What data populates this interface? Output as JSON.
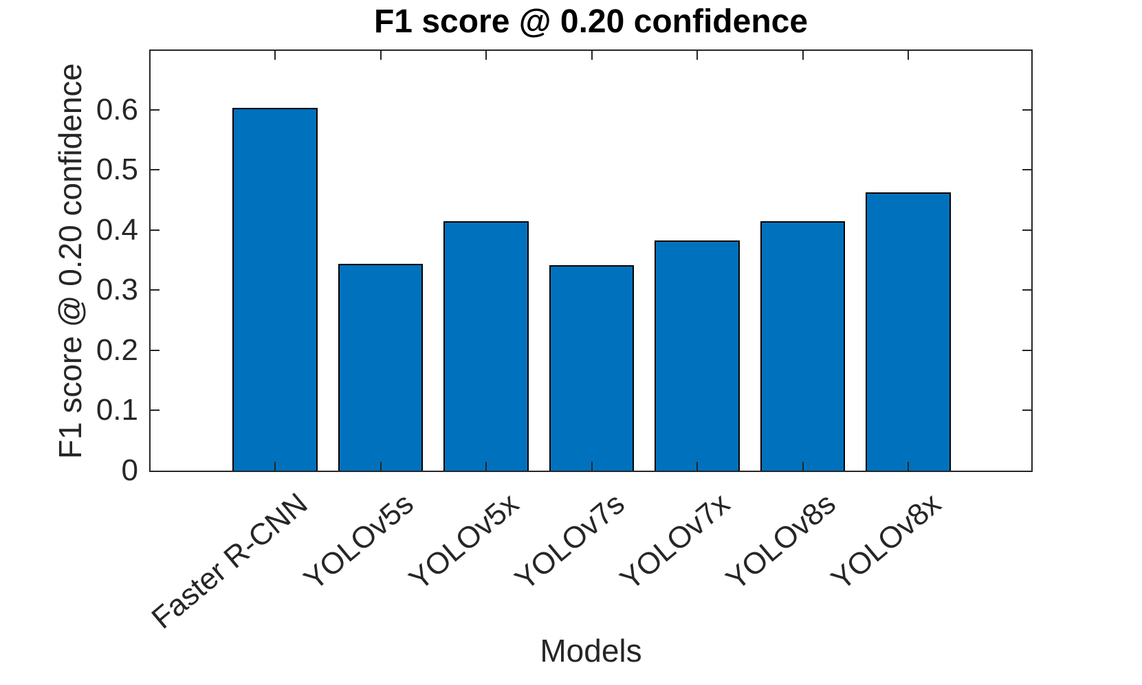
{
  "chart_data": {
    "type": "bar",
    "title": "F1 score @ 0.20 confidence",
    "xlabel": "Models",
    "ylabel": "F1 score @ 0.20 confidence",
    "categories": [
      "Faster R-CNN",
      "YOLOv5s",
      "YOLOv5x",
      "YOLOv7s",
      "YOLOv7x",
      "YOLOv8s",
      "YOLOv8x"
    ],
    "values": [
      0.603,
      0.344,
      0.414,
      0.341,
      0.382,
      0.415,
      0.463
    ],
    "ylim": [
      0,
      0.7
    ],
    "yticks": [
      0,
      0.1,
      0.2,
      0.3,
      0.4,
      0.5,
      0.6
    ],
    "x_tick_rotation_deg": 40,
    "grid": "off",
    "legend": "none",
    "bar_color": "#0072BD",
    "bar_edge_color": "#000000",
    "axis_color": "#262626",
    "background_color": "#ffffff"
  }
}
